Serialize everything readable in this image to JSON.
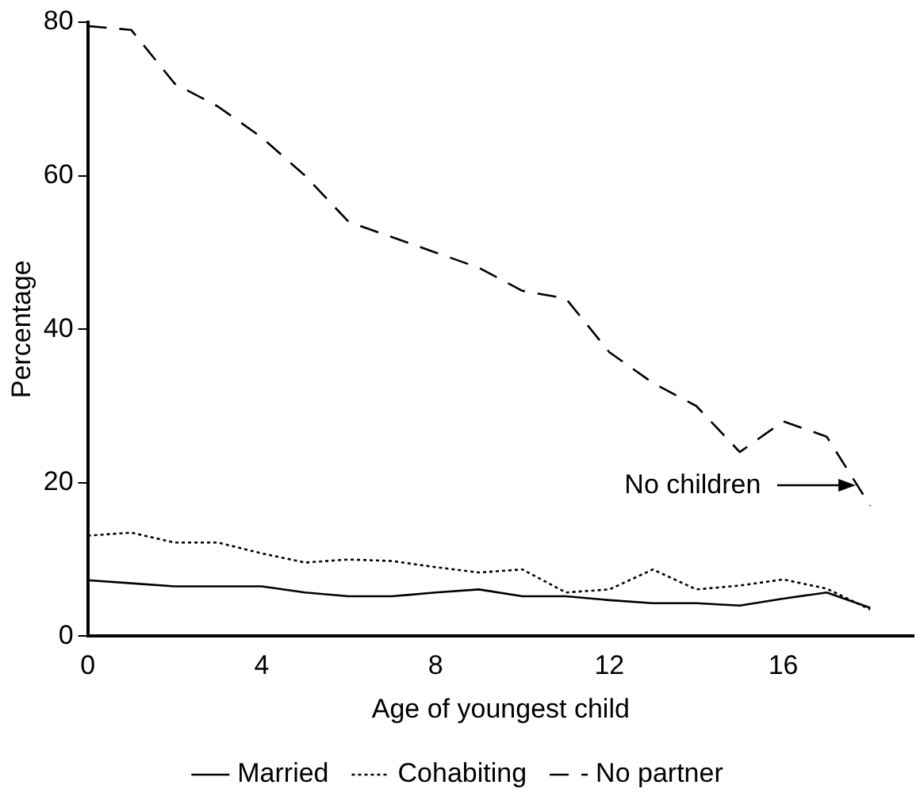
{
  "chart_data": {
    "type": "line",
    "xlabel": "Age of youngest child",
    "ylabel": "Percentage",
    "x": [
      0,
      1,
      2,
      3,
      4,
      5,
      6,
      7,
      8,
      9,
      10,
      11,
      12,
      13,
      14,
      15,
      16,
      17,
      18
    ],
    "series": [
      {
        "name": "Married",
        "color": "#000000",
        "line_style": "solid",
        "values": [
          7.3,
          6.9,
          6.5,
          6.5,
          6.5,
          5.7,
          5.2,
          5.2,
          5.7,
          6.1,
          5.2,
          5.2,
          4.7,
          4.3,
          4.3,
          4,
          4.9,
          5.7,
          3.7
        ]
      },
      {
        "name": "Cohabiting",
        "color": "#000000",
        "line_style": "dotted",
        "values": [
          13.1,
          13.5,
          12.2,
          12.2,
          10.8,
          9.6,
          10,
          9.8,
          9,
          8.3,
          8.7,
          5.7,
          6.1,
          8.7,
          6.1,
          6.6,
          7.4,
          6.2,
          3.5
        ]
      },
      {
        "name": "No partner",
        "color": "#000000",
        "line_style": "dashed",
        "values": [
          79.5,
          79,
          72,
          69,
          65,
          60,
          54,
          52,
          50,
          48,
          45,
          44,
          37,
          33,
          30,
          24,
          28,
          26,
          17
        ]
      }
    ],
    "xlim": [
      0,
      19
    ],
    "xticks": [
      0,
      4,
      8,
      12,
      16
    ],
    "ylim": [
      0,
      80
    ],
    "yticks": [
      0,
      20,
      40,
      60,
      80
    ],
    "grid": false,
    "legend": "bottom",
    "marker": "none",
    "annotations": [
      "No children"
    ]
  }
}
